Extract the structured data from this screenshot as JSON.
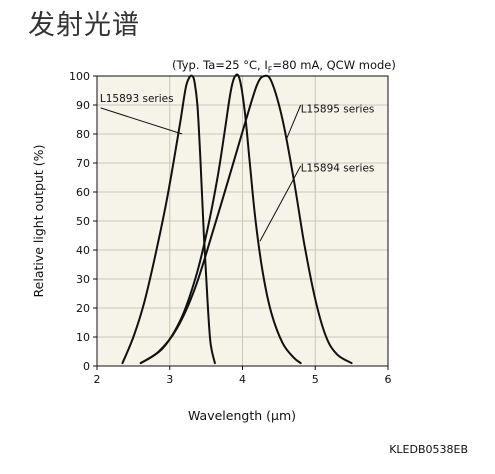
{
  "page": {
    "title": "发射光谱",
    "figure_code": "KLEDB0538EB"
  },
  "chart_data": {
    "type": "line",
    "conditions": "(Typ. Ta=25 °C, IF=80 mA, QCW mode)",
    "conditions_parts": {
      "prefix": "(Typ. Ta=25 °C, I",
      "sub": "F",
      "suffix": "=80 mA, QCW mode)"
    },
    "xlabel": "Wavelength (μm)",
    "ylabel": "Relative light output (%)",
    "xlim": [
      2,
      6
    ],
    "ylim": [
      0,
      100
    ],
    "xticks": [
      2,
      3,
      4,
      5,
      6
    ],
    "yticks": [
      0,
      10,
      20,
      30,
      40,
      50,
      60,
      70,
      80,
      90,
      100
    ],
    "grid": true,
    "series": [
      {
        "name": "L15893 series",
        "x": [
          2.35,
          2.5,
          2.65,
          2.8,
          2.95,
          3.05,
          3.15,
          3.22,
          3.27,
          3.31,
          3.34,
          3.38,
          3.42,
          3.47,
          3.52,
          3.56,
          3.62
        ],
        "y": [
          1,
          10,
          22,
          38,
          56,
          70,
          85,
          96,
          99.5,
          100,
          98,
          90,
          72,
          45,
          22,
          8,
          1
        ]
      },
      {
        "name": "L15894 series",
        "x": [
          2.6,
          2.9,
          3.15,
          3.35,
          3.5,
          3.65,
          3.75,
          3.84,
          3.9,
          3.96,
          4.03,
          4.1,
          4.18,
          4.28,
          4.4,
          4.55,
          4.7,
          4.8
        ],
        "y": [
          1,
          6,
          16,
          30,
          45,
          64,
          80,
          95,
          100,
          99,
          88,
          70,
          50,
          32,
          18,
          8,
          3,
          1
        ]
      },
      {
        "name": "L15895 series",
        "x": [
          2.6,
          2.85,
          3.1,
          3.35,
          3.6,
          3.85,
          4.05,
          4.2,
          4.3,
          4.4,
          4.55,
          4.7,
          4.85,
          5.0,
          5.15,
          5.3,
          5.5
        ],
        "y": [
          1,
          5,
          13,
          27,
          47,
          68,
          85,
          97,
          100,
          98,
          85,
          65,
          42,
          23,
          10,
          4,
          1
        ]
      }
    ],
    "annotations": [
      {
        "label": "L15893 series",
        "text_x": 2.04,
        "text_y": 91,
        "leader_from": [
          2.05,
          89
        ],
        "leader_to": [
          3.17,
          80
        ]
      },
      {
        "label": "L15895 series",
        "text_x": 4.8,
        "text_y": 87.5,
        "leader_from": [
          4.8,
          90
        ],
        "leader_to": [
          4.6,
          78
        ]
      },
      {
        "label": "L15894 series",
        "text_x": 4.8,
        "text_y": 67,
        "leader_from": [
          4.8,
          69
        ],
        "leader_to": [
          4.24,
          43
        ]
      }
    ]
  }
}
